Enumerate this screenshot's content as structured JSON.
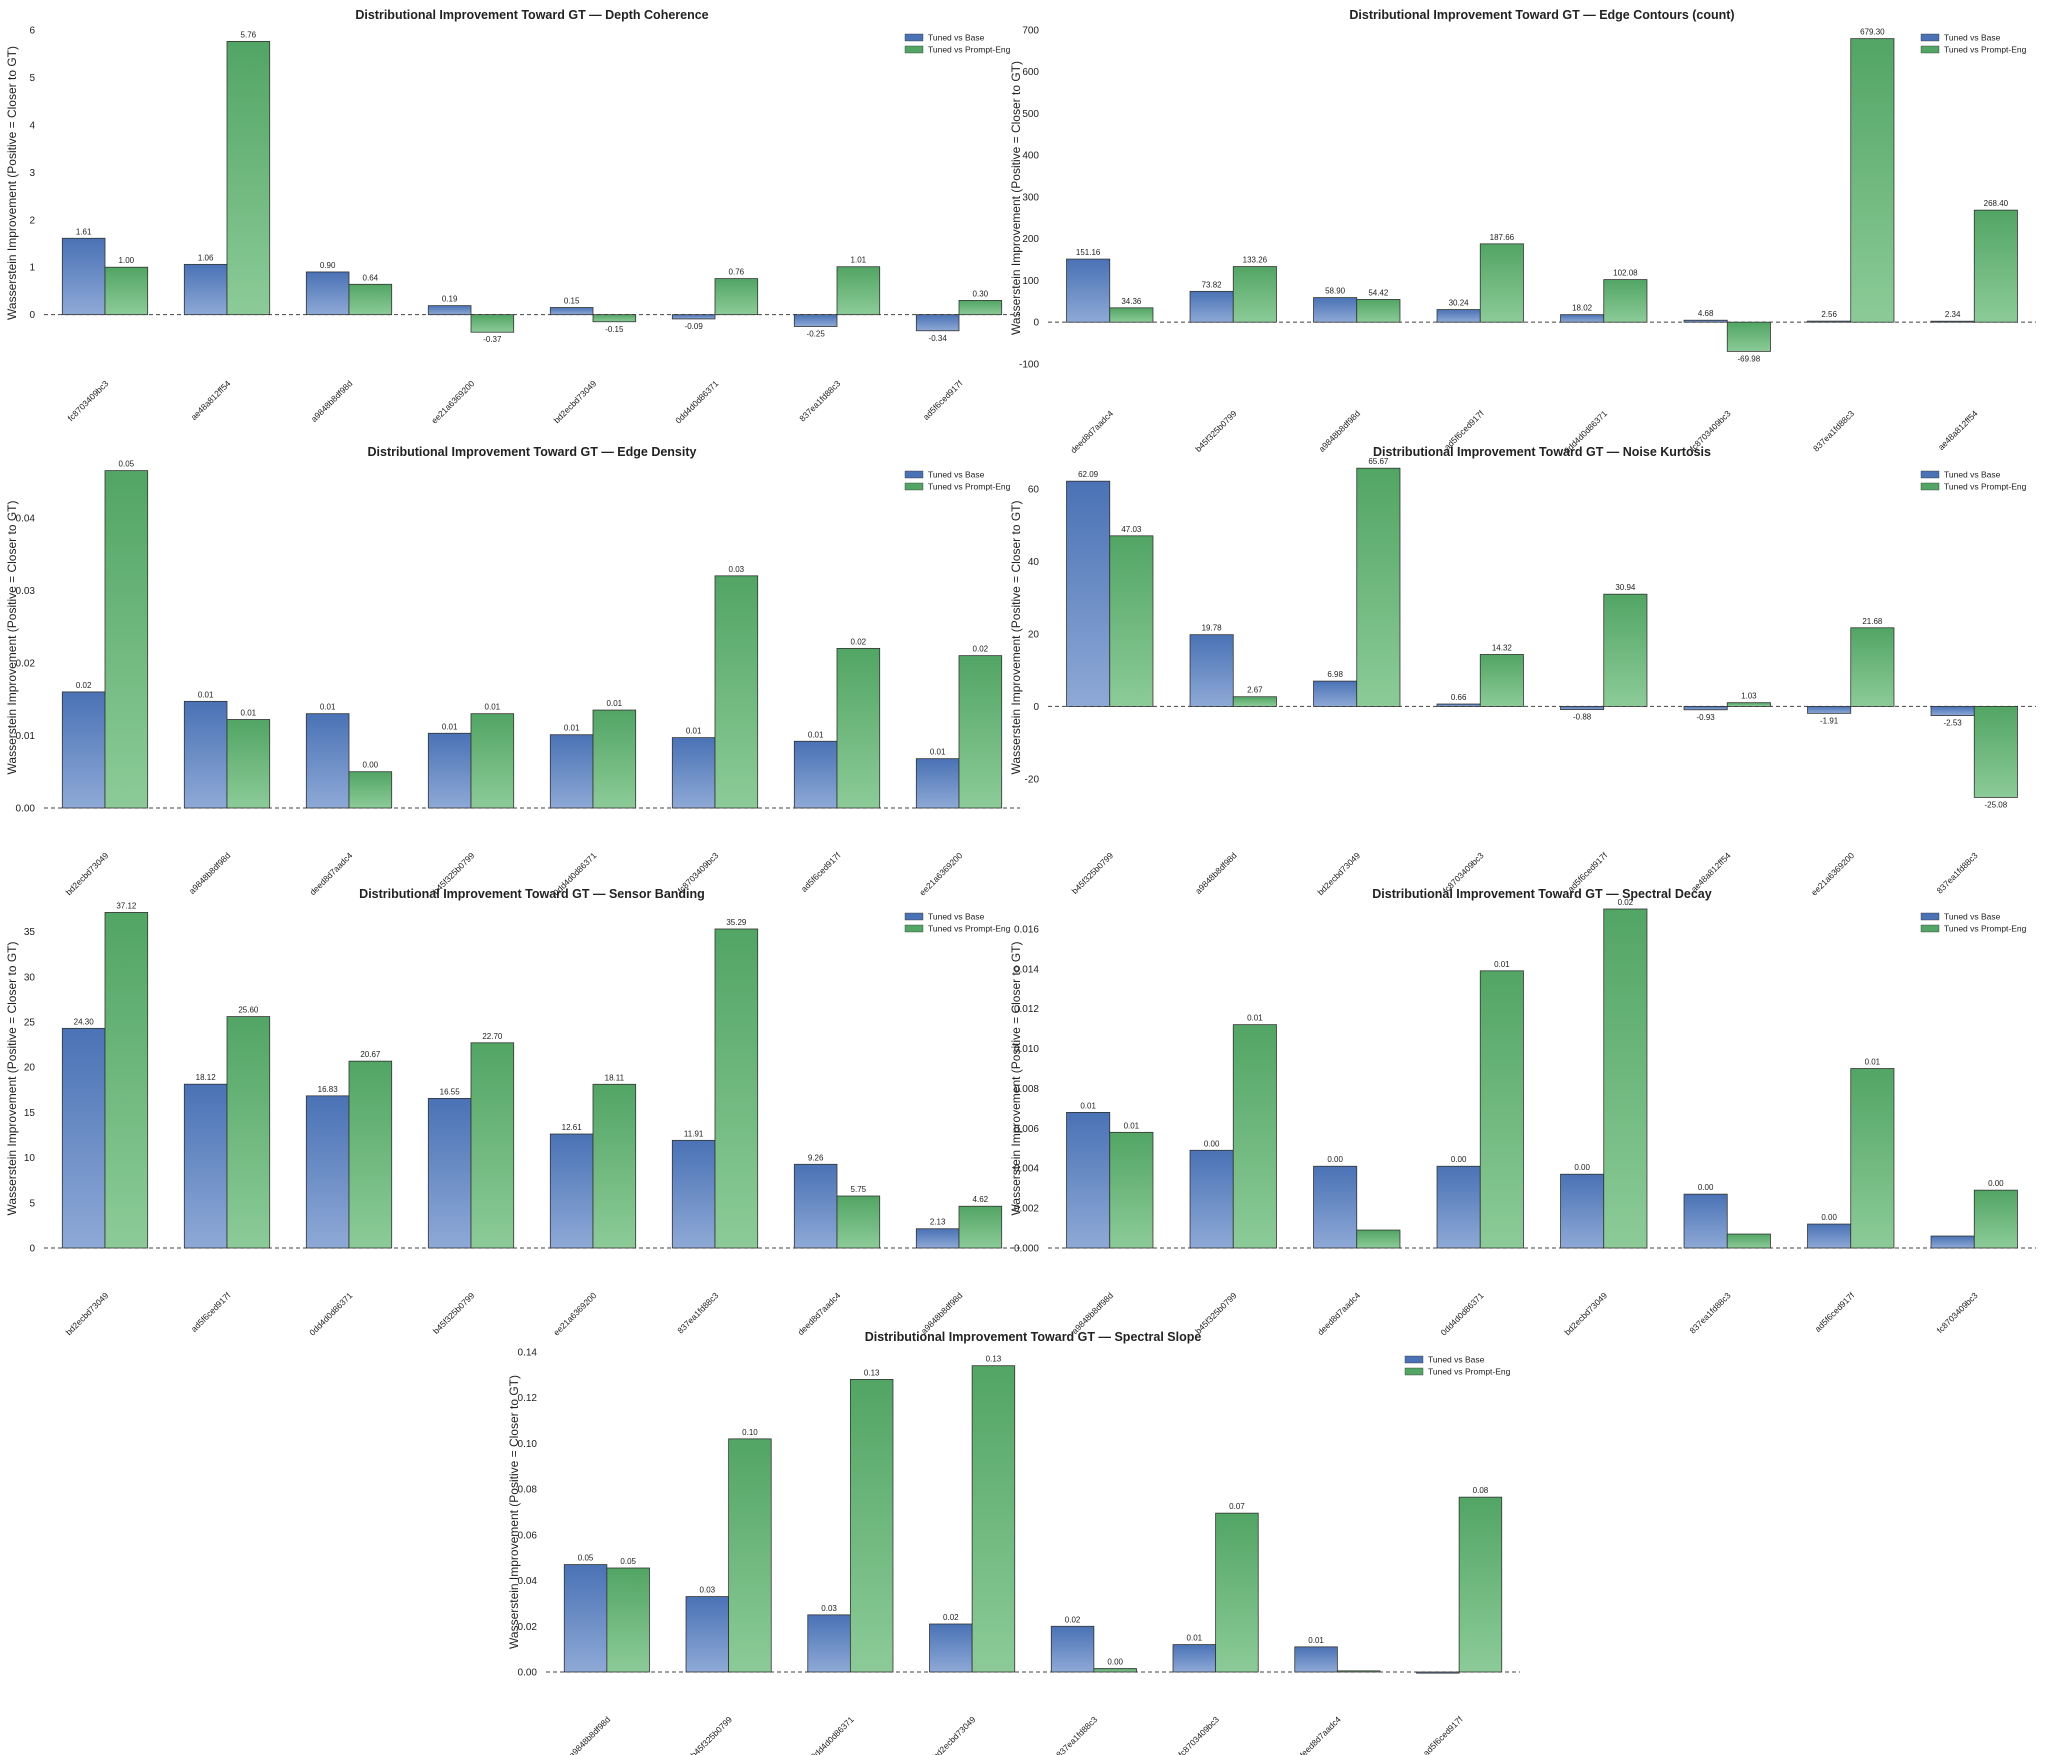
{
  "colors": {
    "base_top": "#4a72b5",
    "base_bottom": "#8ea9d6",
    "pe_top": "#52a564",
    "pe_bottom": "#8ccb98",
    "bar_edge": "#333333",
    "zero_line": "#444444"
  },
  "chart_data": [
    {
      "type": "bar",
      "title": "Distributional Improvement Toward GT — Depth Coherence",
      "ylabel": "Wasserstein Improvement (Positive = Closer to GT)",
      "categories": [
        "fc8703409bc3",
        "ae48a812ff54",
        "a9848b8df98d",
        "ee21a6369200",
        "bd2ecbd73049",
        "0dd4d0d86371",
        "837ea1fd88c3",
        "ad5f6ced917f"
      ],
      "ylim": [
        -0.45,
        6.0
      ],
      "yticks": [
        0,
        1,
        2,
        3,
        4,
        5,
        6
      ],
      "tick_decimals": 0,
      "series": [
        {
          "name": "Tuned vs Base",
          "values": [
            1.61,
            1.06,
            0.9,
            0.19,
            0.15,
            -0.09,
            -0.25,
            -0.34
          ],
          "labels": [
            "1.61",
            "1.06",
            "0.90",
            "0.19",
            "0.15",
            "-0.09",
            "-0.25",
            "-0.34"
          ]
        },
        {
          "name": "Tuned vs Prompt-Eng",
          "values": [
            1.0,
            5.76,
            0.64,
            -0.37,
            -0.15,
            0.76,
            1.01,
            0.3
          ],
          "labels": [
            "1.00",
            "5.76",
            "0.64",
            "-0.37",
            "-0.15",
            "0.76",
            "1.01",
            "0.30"
          ]
        }
      ],
      "legend": "top-right"
    },
    {
      "type": "bar",
      "title": "Distributional Improvement Toward GT — Edge Contours (count)",
      "ylabel": "Wasserstein Improvement (Positive = Closer to GT)",
      "categories": [
        "deed8d7aadc4",
        "b45f325b0799",
        "a9848b8df98d",
        "ad5f6ced917f",
        "0dd4d0d86371",
        "fc8703409bc3",
        "837ea1fd88c3",
        "ae48a812ff54"
      ],
      "ylim": [
        -105,
        700
      ],
      "yticks": [
        -100,
        0,
        100,
        200,
        300,
        400,
        500,
        600,
        700
      ],
      "tick_decimals": 0,
      "series": [
        {
          "name": "Tuned vs Base",
          "values": [
            151.16,
            73.82,
            58.9,
            30.24,
            18.02,
            4.68,
            2.56,
            2.34
          ],
          "labels": [
            "151.16",
            "73.82",
            "58.90",
            "30.24",
            "18.02",
            "4.68",
            "2.56",
            "2.34"
          ]
        },
        {
          "name": "Tuned vs Prompt-Eng",
          "values": [
            34.36,
            133.26,
            54.42,
            187.66,
            102.08,
            -69.98,
            679.3,
            268.4
          ],
          "labels": [
            "34.36",
            "133.26",
            "54.42",
            "187.66",
            "102.08",
            "-69.98",
            "679.30",
            "268.40"
          ]
        }
      ],
      "legend": "top-right"
    },
    {
      "type": "bar",
      "title": "Distributional Improvement Toward GT — Edge Density",
      "ylabel": "Wasserstein Improvement (Positive = Closer to GT)",
      "categories": [
        "bd2ecbd73049",
        "a9848b8df98d",
        "deed8d7aadc4",
        "b45f325b0799",
        "0dd4d0d86371",
        "fc8703409bc3",
        "ad5f6ced917f",
        "ee21a6369200"
      ],
      "ylim": [
        0,
        0.047
      ],
      "yticks": [
        0,
        0.01,
        0.02,
        0.03,
        0.04
      ],
      "tick_decimals": 2,
      "series": [
        {
          "name": "Tuned vs Base",
          "values": [
            0.016,
            0.0147,
            0.013,
            0.0103,
            0.0101,
            0.0097,
            0.0092,
            0.0068
          ],
          "labels": [
            "0.02",
            "0.01",
            "0.01",
            "0.01",
            "0.01",
            "0.01",
            "0.01",
            "0.01"
          ]
        },
        {
          "name": "Tuned vs Prompt-Eng",
          "values": [
            0.0465,
            0.0122,
            0.005,
            0.013,
            0.0135,
            0.032,
            0.022,
            0.021
          ],
          "labels": [
            "0.05",
            "0.01",
            "0.00",
            "0.01",
            "0.01",
            "0.03",
            "0.02",
            "0.02"
          ]
        }
      ],
      "legend": "top-right"
    },
    {
      "type": "bar",
      "title": "Distributional Improvement Toward GT — Noise Kurtosis",
      "ylabel": "Wasserstein Improvement (Positive = Closer to GT)",
      "categories": [
        "b45f325b0799",
        "a9848b8df98d",
        "bd2ecbd73049",
        "fc8703409bc3",
        "ad5f6ced917f",
        "ae48a812ff54",
        "ee21a6369200",
        "837ea1fd88c3"
      ],
      "ylim": [
        -28,
        66
      ],
      "yticks": [
        -20,
        0,
        20,
        40,
        60
      ],
      "tick_decimals": 0,
      "series": [
        {
          "name": "Tuned vs Base",
          "values": [
            62.09,
            19.78,
            6.98,
            0.66,
            -0.88,
            -0.93,
            -1.91,
            -2.53
          ],
          "labels": [
            "62.09",
            "19.78",
            "6.98",
            "0.66",
            "-0.88",
            "-0.93",
            "-1.91",
            "-2.53"
          ]
        },
        {
          "name": "Tuned vs Prompt-Eng",
          "values": [
            47.03,
            2.67,
            65.67,
            14.32,
            30.94,
            1.03,
            21.68,
            -25.08
          ],
          "labels": [
            "47.03",
            "2.67",
            "65.67",
            "14.32",
            "30.94",
            "1.03",
            "21.68",
            "-25.08"
          ]
        }
      ],
      "legend": "top-right"
    },
    {
      "type": "bar",
      "title": "Distributional Improvement Toward GT — Sensor Banding",
      "ylabel": "Wasserstein Improvement (Positive = Closer to GT)",
      "categories": [
        "bd2ecbd73049",
        "ad5f6ced917f",
        "0dd4d0d86371",
        "b45f325b0799",
        "ee21a6369200",
        "837ea1fd88c3",
        "deed8d7aadc4",
        "a9848b8df98d"
      ],
      "ylim": [
        0,
        37.5
      ],
      "yticks": [
        0,
        5,
        10,
        15,
        20,
        25,
        30,
        35
      ],
      "tick_decimals": 0,
      "series": [
        {
          "name": "Tuned vs Base",
          "values": [
            24.3,
            18.12,
            16.83,
            16.55,
            12.61,
            11.91,
            9.26,
            2.13
          ],
          "labels": [
            "24.30",
            "18.12",
            "16.83",
            "16.55",
            "12.61",
            "11.91",
            "9.26",
            "2.13"
          ]
        },
        {
          "name": "Tuned vs Prompt-Eng",
          "values": [
            37.12,
            25.6,
            20.67,
            22.7,
            18.11,
            35.29,
            5.75,
            4.62
          ],
          "labels": [
            "37.12",
            "25.60",
            "20.67",
            "22.70",
            "18.11",
            "35.29",
            "5.75",
            "4.62"
          ]
        }
      ],
      "legend": "top-right"
    },
    {
      "type": "bar",
      "title": "Distributional Improvement Toward GT — Spectral Decay",
      "ylabel": "Wasserstein Improvement (Positive = Closer to GT)",
      "categories": [
        "a9848b8df98d",
        "b45f325b0799",
        "deed8d7aadc4",
        "0dd4d0d86371",
        "bd2ecbd73049",
        "837ea1fd88c3",
        "ad5f6ced917f",
        "fc8703409bc3"
      ],
      "ylim": [
        0,
        0.017
      ],
      "yticks": [
        0,
        0.002,
        0.004,
        0.006,
        0.008,
        0.01,
        0.012,
        0.014,
        0.016
      ],
      "tick_decimals": 3,
      "series": [
        {
          "name": "Tuned vs Base",
          "values": [
            0.0068,
            0.0049,
            0.0041,
            0.0041,
            0.0037,
            0.0027,
            0.0012,
            0.0006
          ],
          "labels": [
            "0.01",
            "0.00",
            "0.00",
            "0.00",
            "0.00",
            "0.00",
            "0.00",
            ""
          ]
        },
        {
          "name": "Tuned vs Prompt-Eng",
          "values": [
            0.0058,
            0.0112,
            0.0009,
            0.0139,
            0.017,
            0.0007,
            0.009,
            0.0029
          ],
          "labels": [
            "0.01",
            "0.01",
            "",
            "0.01",
            "0.02",
            "",
            "0.01",
            "0.00"
          ]
        }
      ],
      "legend": "top-right"
    },
    {
      "type": "bar",
      "title": "Distributional Improvement Toward GT — Spectral Slope",
      "ylabel": "Wasserstein Improvement (Positive = Closer to GT)",
      "categories": [
        "a9848b8df98d",
        "b45f325b0799",
        "0dd4d0d86371",
        "bd2ecbd73049",
        "837ea1fd88c3",
        "fc8703409bc3",
        "deed8d7aadc4",
        "ad5f6ced917f"
      ],
      "ylim": [
        0,
        0.14
      ],
      "yticks": [
        0,
        0.02,
        0.04,
        0.06,
        0.08,
        0.1,
        0.12,
        0.14
      ],
      "tick_decimals": 2,
      "series": [
        {
          "name": "Tuned vs Base",
          "values": [
            0.047,
            0.033,
            0.025,
            0.021,
            0.02,
            0.012,
            0.011,
            -0.0005
          ],
          "labels": [
            "0.05",
            "0.03",
            "0.03",
            "0.02",
            "0.02",
            "0.01",
            "0.01",
            ""
          ]
        },
        {
          "name": "Tuned vs Prompt-Eng",
          "values": [
            0.0455,
            0.102,
            0.128,
            0.134,
            0.0015,
            0.0695,
            0.0005,
            0.0765
          ],
          "labels": [
            "0.05",
            "0.10",
            "0.13",
            "0.13",
            "0.00",
            "0.07",
            "",
            "0.08"
          ]
        }
      ],
      "legend": "top-right"
    }
  ]
}
